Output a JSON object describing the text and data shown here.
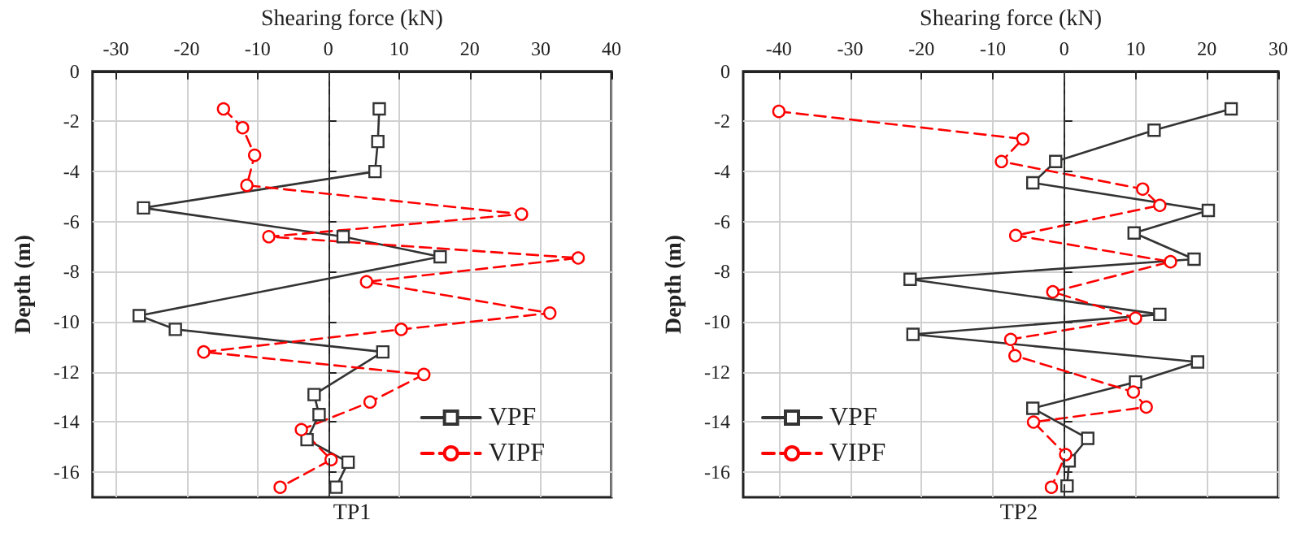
{
  "chart_data": [
    {
      "type": "line",
      "title": "TP1",
      "xlabel": "Shearing force (kN)",
      "ylabel": "Depth (m)",
      "xlim": [
        -33.3,
        40
      ],
      "xticks": [
        -30,
        -20,
        -10,
        0,
        10,
        20,
        30,
        40
      ],
      "ylim": [
        -17,
        0
      ],
      "yticks": [
        0,
        -2,
        -4,
        -6,
        -8,
        -10,
        -12,
        -14,
        -16
      ],
      "grid": true,
      "legend": "bottom right",
      "ref_lines": [
        {
          "axis": "x",
          "value": 0,
          "color": "#333333",
          "line_style": "dashed"
        }
      ],
      "series": [
        {
          "name": "VPF",
          "color": "#333333",
          "marker": "square",
          "line_style": "solid",
          "x": [
            7.2,
            7.0,
            6.6,
            -26.1,
            2.1,
            15.8,
            -26.7,
            -21.6,
            7.7,
            -2.0,
            -1.3,
            -3.0,
            2.8,
            1.1
          ],
          "values": [
            -1.5,
            -2.8,
            -4.0,
            -5.45,
            -6.6,
            -7.4,
            -9.75,
            -10.3,
            -11.2,
            -12.9,
            -13.7,
            -14.7,
            -15.6,
            -16.6
          ]
        },
        {
          "name": "VIPF",
          "color": "#ff0000",
          "marker": "circle",
          "line_style": "dashed",
          "x": [
            -14.8,
            -12.1,
            -10.4,
            -11.5,
            27.3,
            -8.4,
            35.3,
            5.4,
            31.3,
            10.3,
            -17.6,
            13.5,
            5.9,
            -3.8,
            0.4,
            -6.8
          ],
          "values": [
            -1.5,
            -2.25,
            -3.35,
            -4.55,
            -5.7,
            -6.6,
            -7.45,
            -8.4,
            -9.65,
            -10.3,
            -11.2,
            -12.1,
            -13.2,
            -14.3,
            -15.5,
            -16.6
          ]
        }
      ]
    },
    {
      "type": "line",
      "title": "TP2",
      "xlabel": "Shearing force (kN)",
      "ylabel": "Depth (m)",
      "xlim": [
        -45,
        30
      ],
      "xticks": [
        -40,
        -30,
        -20,
        -10,
        0,
        10,
        20,
        30
      ],
      "ylim": [
        -17,
        0
      ],
      "yticks": [
        0,
        -2,
        -4,
        -6,
        -8,
        -10,
        -12,
        -14,
        -16
      ],
      "grid": true,
      "legend": "bottom left",
      "ref_lines": [
        {
          "axis": "x",
          "value": 0,
          "color": "#333333",
          "line_style": "dashed"
        }
      ],
      "series": [
        {
          "name": "VPF",
          "color": "#333333",
          "marker": "square",
          "line_style": "solid",
          "x": [
            23.4,
            12.6,
            -1.2,
            -4.4,
            20.2,
            9.8,
            18.2,
            -21.6,
            13.4,
            -21.2,
            18.7,
            10.0,
            -4.4,
            3.3,
            0.7,
            0.4
          ],
          "values": [
            -1.5,
            -2.35,
            -3.6,
            -4.45,
            -5.55,
            -6.45,
            -7.5,
            -8.3,
            -9.7,
            -10.5,
            -11.6,
            -12.4,
            -13.45,
            -14.65,
            -15.55,
            -16.55
          ]
        },
        {
          "name": "VIPF",
          "color": "#ff0000",
          "marker": "circle",
          "line_style": "dashed",
          "x": [
            -40.0,
            -5.8,
            -8.8,
            11.0,
            13.4,
            -6.8,
            14.9,
            -1.6,
            10.0,
            -7.5,
            -6.9,
            9.7,
            11.5,
            -4.3,
            0.2,
            -1.8
          ],
          "values": [
            -1.6,
            -2.7,
            -3.6,
            -4.7,
            -5.35,
            -6.55,
            -7.6,
            -8.8,
            -9.85,
            -10.7,
            -11.35,
            -12.8,
            -13.4,
            -14.0,
            -15.3,
            -16.6
          ]
        }
      ]
    }
  ]
}
